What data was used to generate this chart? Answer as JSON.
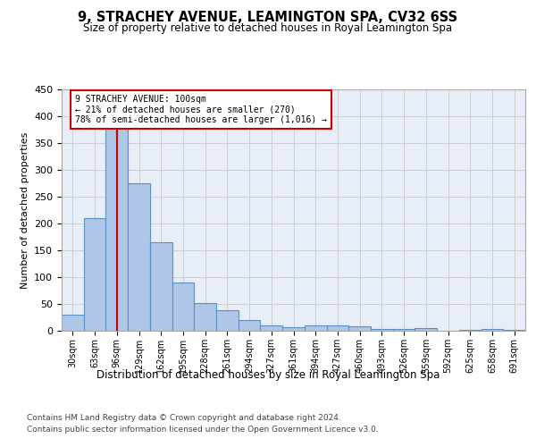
{
  "title": "9, STRACHEY AVENUE, LEAMINGTON SPA, CV32 6SS",
  "subtitle": "Size of property relative to detached houses in Royal Leamington Spa",
  "xlabel": "Distribution of detached houses by size in Royal Leamington Spa",
  "ylabel": "Number of detached properties",
  "footer_line1": "Contains HM Land Registry data © Crown copyright and database right 2024.",
  "footer_line2": "Contains public sector information licensed under the Open Government Licence v3.0.",
  "bin_labels": [
    "30sqm",
    "63sqm",
    "96sqm",
    "129sqm",
    "162sqm",
    "195sqm",
    "228sqm",
    "261sqm",
    "294sqm",
    "327sqm",
    "361sqm",
    "394sqm",
    "427sqm",
    "460sqm",
    "493sqm",
    "526sqm",
    "559sqm",
    "592sqm",
    "625sqm",
    "658sqm",
    "691sqm"
  ],
  "bar_heights": [
    30,
    210,
    380,
    275,
    165,
    90,
    52,
    38,
    20,
    10,
    6,
    10,
    10,
    9,
    4,
    4,
    5,
    0,
    2,
    4,
    2
  ],
  "bar_color": "#aec6e8",
  "bar_edge_color": "#5a8fc0",
  "bar_edge_width": 0.8,
  "grid_color": "#cccccc",
  "background_color": "#e8eef8",
  "red_line_x": 2,
  "red_line_color": "#cc0000",
  "annotation_text": "9 STRACHEY AVENUE: 100sqm\n← 21% of detached houses are smaller (270)\n78% of semi-detached houses are larger (1,016) →",
  "annotation_box_color": "white",
  "annotation_box_edge_color": "#cc0000",
  "ylim": [
    0,
    450
  ],
  "yticks": [
    0,
    50,
    100,
    150,
    200,
    250,
    300,
    350,
    400,
    450
  ]
}
